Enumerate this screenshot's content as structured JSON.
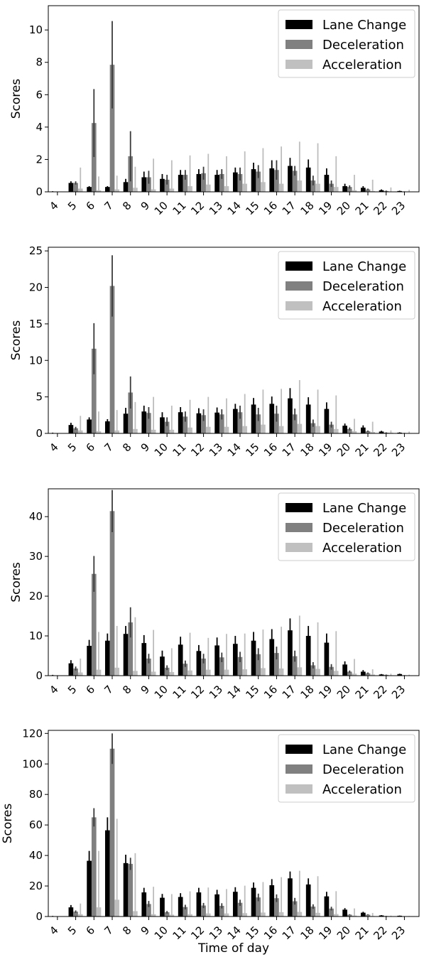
{
  "chart_data": [
    {
      "type": "bar",
      "categories": [
        "4",
        "5",
        "6",
        "7",
        "8",
        "9",
        "10",
        "11",
        "12",
        "13",
        "14",
        "15",
        "16",
        "17",
        "18",
        "19",
        "20",
        "21",
        "22",
        "23"
      ],
      "ylabel": "Scores",
      "xlabel": "",
      "ylim": [
        0,
        11.5
      ],
      "yticks": [
        0,
        2,
        4,
        6,
        8,
        10
      ],
      "legend_position": "top-right",
      "series": [
        {
          "name": "Lane Change",
          "color": "#000000",
          "values": [
            0.02,
            0.55,
            0.3,
            0.3,
            0.6,
            0.9,
            0.8,
            1.05,
            1.1,
            1.05,
            1.2,
            1.4,
            1.45,
            1.6,
            1.5,
            1.05,
            0.35,
            0.25,
            0.1,
            0.05
          ],
          "errors": [
            0.02,
            0.1,
            0.05,
            0.05,
            0.2,
            0.35,
            0.3,
            0.3,
            0.3,
            0.3,
            0.3,
            0.4,
            0.5,
            0.5,
            0.5,
            0.4,
            0.15,
            0.1,
            0.05,
            0.02
          ]
        },
        {
          "name": "Deceleration",
          "color": "#808080",
          "values": [
            0.01,
            0.55,
            4.25,
            7.85,
            2.2,
            0.9,
            0.75,
            1.05,
            1.15,
            1.1,
            1.1,
            1.25,
            1.35,
            1.3,
            0.7,
            0.5,
            0.3,
            0.15,
            0.05,
            0.02
          ],
          "errors": [
            0.01,
            0.1,
            2.1,
            2.7,
            1.55,
            0.4,
            0.3,
            0.3,
            0.4,
            0.3,
            0.4,
            0.4,
            0.6,
            0.3,
            0.3,
            0.2,
            0.1,
            0.05,
            0.03,
            0.01
          ]
        },
        {
          "name": "Acceleration",
          "color": "#c0c0c0",
          "values": [
            0.01,
            0.2,
            0.1,
            0.15,
            0.25,
            0.15,
            0.2,
            0.35,
            0.45,
            0.35,
            0.5,
            0.6,
            0.5,
            0.7,
            0.5,
            0.3,
            0.1,
            0.05,
            0.02,
            0.01
          ],
          "errors": [
            0.01,
            1.3,
            0.85,
            0.85,
            1.3,
            1.9,
            1.75,
            1.9,
            1.9,
            1.85,
            2.0,
            2.1,
            2.3,
            2.4,
            2.5,
            1.9,
            0.95,
            0.7,
            0.25,
            0.12
          ]
        }
      ]
    },
    {
      "type": "bar",
      "categories": [
        "4",
        "5",
        "6",
        "7",
        "8",
        "9",
        "10",
        "11",
        "12",
        "13",
        "14",
        "15",
        "16",
        "17",
        "18",
        "19",
        "20",
        "21",
        "22",
        "23"
      ],
      "ylabel": "Scores",
      "xlabel": "",
      "ylim": [
        0,
        25.5
      ],
      "yticks": [
        0,
        5,
        10,
        15,
        20,
        25
      ],
      "legend_position": "top-right",
      "series": [
        {
          "name": "Lane Change",
          "color": "#000000",
          "values": [
            0.05,
            1.15,
            1.9,
            1.65,
            2.7,
            3.0,
            2.2,
            2.9,
            2.75,
            2.85,
            3.35,
            3.95,
            4.05,
            4.8,
            3.95,
            3.35,
            1.05,
            0.8,
            0.25,
            0.1
          ],
          "errors": [
            0.05,
            0.3,
            0.3,
            0.3,
            0.8,
            0.8,
            0.7,
            0.7,
            0.7,
            0.7,
            0.7,
            0.9,
            1.0,
            1.4,
            1.0,
            0.9,
            0.3,
            0.3,
            0.1,
            0.05
          ]
        },
        {
          "name": "Deceleration",
          "color": "#808080",
          "values": [
            0.02,
            0.7,
            11.6,
            20.2,
            5.6,
            2.8,
            1.6,
            2.3,
            2.5,
            2.6,
            2.9,
            2.6,
            2.7,
            2.6,
            1.4,
            1.2,
            0.6,
            0.3,
            0.1,
            0.05
          ],
          "errors": [
            0.02,
            0.2,
            3.5,
            4.2,
            2.2,
            0.8,
            0.6,
            0.7,
            0.8,
            0.7,
            0.9,
            0.9,
            1.1,
            0.8,
            0.5,
            0.4,
            0.2,
            0.1,
            0.05,
            0.02
          ]
        },
        {
          "name": "Acceleration",
          "color": "#c0c0c0",
          "values": [
            0.02,
            0.4,
            0.3,
            0.4,
            0.6,
            0.5,
            0.5,
            0.8,
            0.9,
            0.9,
            1.0,
            1.2,
            1.0,
            1.3,
            1.0,
            0.6,
            0.3,
            0.2,
            0.1,
            0.05
          ],
          "errors": [
            0.02,
            2.0,
            2.7,
            2.8,
            3.7,
            4.5,
            3.3,
            3.8,
            4.1,
            3.9,
            4.4,
            4.8,
            5.1,
            6.0,
            5.0,
            4.6,
            1.7,
            1.4,
            0.3,
            0.2
          ]
        }
      ]
    },
    {
      "type": "bar",
      "categories": [
        "4",
        "5",
        "6",
        "7",
        "8",
        "9",
        "10",
        "11",
        "12",
        "13",
        "14",
        "15",
        "16",
        "17",
        "18",
        "19",
        "20",
        "21",
        "22",
        "23"
      ],
      "ylabel": "Scores",
      "xlabel": "",
      "ylim": [
        0,
        47
      ],
      "yticks": [
        0,
        10,
        20,
        30,
        40
      ],
      "legend_position": "top-right",
      "series": [
        {
          "name": "Lane Change",
          "color": "#000000",
          "values": [
            0.1,
            3.1,
            7.5,
            8.8,
            10.5,
            8.2,
            4.8,
            7.8,
            6.2,
            7.6,
            8.0,
            8.8,
            9.2,
            11.4,
            10.0,
            8.3,
            2.8,
            1.0,
            0.3,
            0.4
          ],
          "errors": [
            0.1,
            0.8,
            1.5,
            1.8,
            2.0,
            2.0,
            1.5,
            2.0,
            1.5,
            2.0,
            2.0,
            2.2,
            2.5,
            3.0,
            2.5,
            2.3,
            0.8,
            0.4,
            0.1,
            0.1
          ]
        },
        {
          "name": "Deceleration",
          "color": "#808080",
          "values": [
            0.05,
            1.8,
            25.6,
            41.4,
            13.4,
            4.3,
            2.0,
            3.0,
            4.3,
            4.6,
            4.7,
            5.4,
            5.7,
            4.9,
            2.6,
            2.2,
            1.0,
            0.6,
            0.2,
            0.1
          ],
          "errors": [
            0.05,
            0.5,
            4.5,
            5.3,
            3.8,
            1.2,
            0.6,
            0.8,
            1.2,
            1.2,
            1.3,
            1.5,
            1.6,
            1.4,
            0.8,
            0.7,
            0.3,
            0.2,
            0.08,
            0.04
          ]
        },
        {
          "name": "Acceleration",
          "color": "#c0c0c0",
          "values": [
            0.05,
            0.8,
            1.5,
            2.0,
            1.2,
            1.0,
            0.9,
            1.3,
            1.5,
            1.5,
            1.6,
            1.9,
            1.8,
            2.1,
            1.7,
            1.2,
            0.5,
            0.3,
            0.1,
            0.05
          ],
          "errors": [
            0.05,
            3.5,
            9.5,
            10.5,
            13.5,
            10.5,
            6.0,
            9.5,
            8.0,
            9.0,
            9.0,
            9.7,
            10.5,
            13.0,
            11.7,
            10.0,
            3.7,
            1.3,
            0.4,
            0.2
          ]
        }
      ]
    },
    {
      "type": "bar",
      "categories": [
        "4",
        "5",
        "6",
        "7",
        "8",
        "9",
        "10",
        "11",
        "12",
        "13",
        "14",
        "15",
        "16",
        "17",
        "18",
        "19",
        "20",
        "21",
        "22",
        "23"
      ],
      "ylabel": "Scores",
      "xlabel": "Time of day",
      "ylim": [
        0,
        122
      ],
      "yticks": [
        0,
        20,
        40,
        60,
        80,
        100,
        120
      ],
      "legend_position": "top-right",
      "series": [
        {
          "name": "Lane Change",
          "color": "#000000",
          "values": [
            0.2,
            6.0,
            36.5,
            56.5,
            35.0,
            15.8,
            12.3,
            12.8,
            15.8,
            14.5,
            16.2,
            18.8,
            20.5,
            25.0,
            21.0,
            13.2,
            4.5,
            2.5,
            0.7,
            0.5
          ],
          "errors": [
            0.2,
            1.5,
            6.5,
            8.5,
            5.5,
            3.0,
            2.5,
            2.5,
            3.0,
            3.0,
            3.0,
            3.5,
            4.0,
            4.5,
            4.0,
            3.0,
            1.0,
            0.6,
            0.2,
            0.1
          ]
        },
        {
          "name": "Deceleration",
          "color": "#808080",
          "values": [
            0.1,
            3.2,
            65.0,
            110.0,
            34.5,
            8.2,
            2.8,
            6.2,
            7.2,
            7.0,
            9.0,
            12.5,
            12.0,
            10.0,
            6.5,
            5.2,
            1.2,
            1.2,
            0.3,
            0.2
          ],
          "errors": [
            0.1,
            0.8,
            6.0,
            10.0,
            4.0,
            2.0,
            0.8,
            1.5,
            1.7,
            1.7,
            2.0,
            2.5,
            2.5,
            2.2,
            1.5,
            1.2,
            0.3,
            0.3,
            0.1,
            0.05
          ]
        },
        {
          "name": "Acceleration",
          "color": "#c0c0c0",
          "values": [
            0.1,
            1.5,
            6.0,
            11.0,
            3.5,
            1.5,
            1.2,
            1.5,
            2.0,
            2.0,
            2.2,
            2.6,
            2.8,
            3.0,
            2.4,
            1.6,
            0.6,
            0.3,
            0.1,
            0.05
          ],
          "errors": [
            0.1,
            7.0,
            37.0,
            53.0,
            38.0,
            18.0,
            13.5,
            15.0,
            17.0,
            16.0,
            18.0,
            20.0,
            23.0,
            27.0,
            24.0,
            15.0,
            4.7,
            2.0,
            0.5,
            0.3
          ]
        }
      ]
    }
  ]
}
